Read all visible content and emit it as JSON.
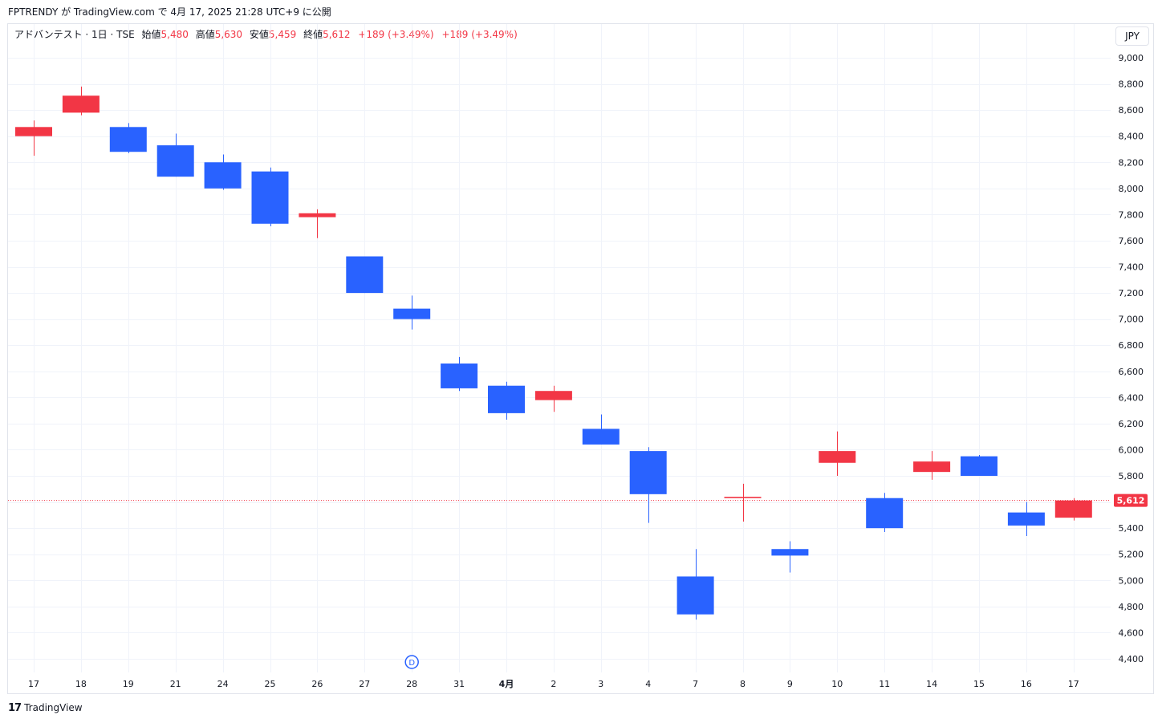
{
  "header": {
    "caption": "FPTRENDY が TradingView.com で 4月 17, 2025 21:28 UTC+9 に公開"
  },
  "legend": {
    "symbol": "アドバンテスト · 1日 · TSE",
    "open_label": "始値",
    "open_value": "5,480",
    "high_label": "高値",
    "high_value": "5,630",
    "low_label": "安値",
    "low_value": "5,459",
    "close_label": "終値",
    "close_value": "5,612",
    "change": "+189 (+3.49%)",
    "change2": "+189 (+3.49%)"
  },
  "currency": "JPY",
  "footer": {
    "logo_glyph": "17",
    "brand": "TradingView"
  },
  "colors": {
    "up": "#f23645",
    "down": "#2962ff",
    "grid": "#f0f3fa",
    "last_price_line": "#f23645",
    "marker": "#2962ff"
  },
  "chart_data": {
    "type": "candlestick",
    "y_axis_ticks": [
      4400,
      4600,
      4800,
      5000,
      5200,
      5400,
      5600,
      5800,
      6000,
      6200,
      6400,
      6600,
      6800,
      7000,
      7200,
      7400,
      7600,
      7800,
      8000,
      8200,
      8400,
      8600,
      8800,
      9000
    ],
    "y_tick_labels": [
      "4,400",
      "4,600",
      "4,800",
      "5,000",
      "5,200",
      "5,400",
      "5,600",
      "5,800",
      "6,000",
      "6,200",
      "6,400",
      "6,600",
      "6,800",
      "7,000",
      "7,200",
      "7,400",
      "7,600",
      "7,800",
      "8,000",
      "8,200",
      "8,400",
      "8,600",
      "8,800",
      "9,000"
    ],
    "ylim": [
      4400,
      9000
    ],
    "last_price": 5612,
    "last_price_label": "5,612",
    "event_marker": {
      "index": 8,
      "label": "D"
    },
    "candles": [
      {
        "label": "17",
        "open": 8400,
        "high": 8520,
        "low": 8250,
        "close": 8470
      },
      {
        "label": "18",
        "open": 8580,
        "high": 8780,
        "low": 8560,
        "close": 8710
      },
      {
        "label": "19",
        "open": 8470,
        "high": 8500,
        "low": 8270,
        "close": 8280
      },
      {
        "label": "21",
        "open": 8330,
        "high": 8420,
        "low": 8090,
        "close": 8090
      },
      {
        "label": "24",
        "open": 8200,
        "high": 8260,
        "low": 7990,
        "close": 8000
      },
      {
        "label": "25",
        "open": 8130,
        "high": 8160,
        "low": 7710,
        "close": 7730
      },
      {
        "label": "26",
        "open": 7780,
        "high": 7840,
        "low": 7620,
        "close": 7810
      },
      {
        "label": "27",
        "open": 7480,
        "high": 7480,
        "low": 7200,
        "close": 7200
      },
      {
        "label": "28",
        "open": 7080,
        "high": 7180,
        "low": 6920,
        "close": 7000
      },
      {
        "label": "31",
        "open": 6660,
        "high": 6710,
        "low": 6450,
        "close": 6470
      },
      {
        "label": "4月",
        "open": 6490,
        "high": 6520,
        "low": 6230,
        "close": 6280
      },
      {
        "label": "2",
        "open": 6380,
        "high": 6490,
        "low": 6290,
        "close": 6450
      },
      {
        "label": "3",
        "open": 6160,
        "high": 6270,
        "low": 6040,
        "close": 6040
      },
      {
        "label": "4",
        "open": 5990,
        "high": 6020,
        "low": 5440,
        "close": 5660
      },
      {
        "label": "7",
        "open": 5030,
        "high": 5240,
        "low": 4700,
        "close": 4740
      },
      {
        "label": "8",
        "open": 5630,
        "high": 5740,
        "low": 5450,
        "close": 5640
      },
      {
        "label": "9",
        "open": 5240,
        "high": 5300,
        "low": 5060,
        "close": 5190
      },
      {
        "label": "10",
        "open": 5900,
        "high": 6140,
        "low": 5800,
        "close": 5990
      },
      {
        "label": "11",
        "open": 5630,
        "high": 5670,
        "low": 5370,
        "close": 5400
      },
      {
        "label": "14",
        "open": 5830,
        "high": 5990,
        "low": 5770,
        "close": 5910
      },
      {
        "label": "15",
        "open": 5950,
        "high": 5960,
        "low": 5800,
        "close": 5800
      },
      {
        "label": "16",
        "open": 5520,
        "high": 5600,
        "low": 5340,
        "close": 5420
      },
      {
        "label": "17",
        "open": 5480,
        "high": 5630,
        "low": 5459,
        "close": 5612
      }
    ]
  }
}
